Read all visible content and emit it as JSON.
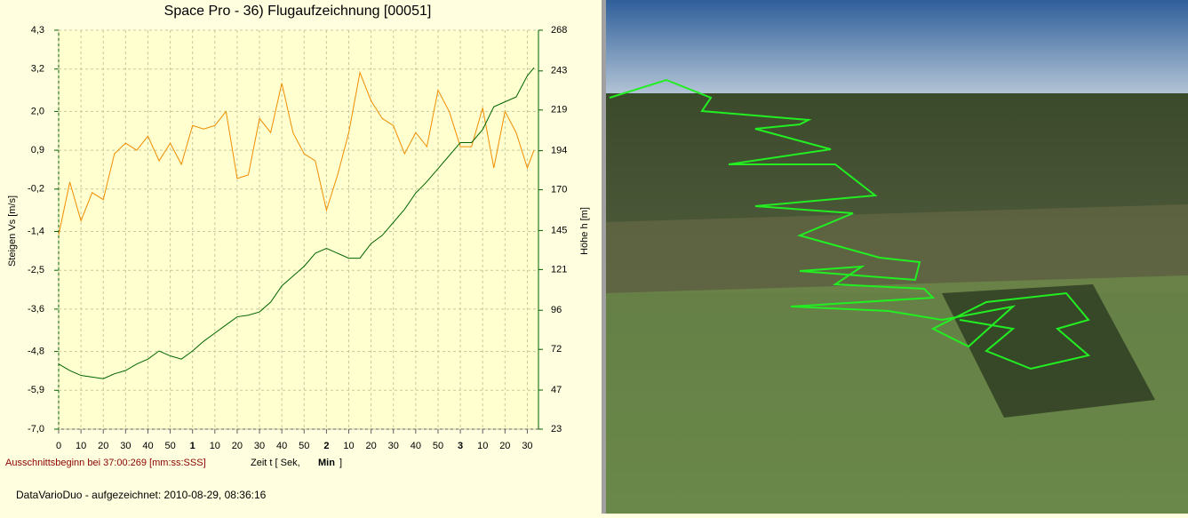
{
  "chart_data": {
    "type": "line",
    "title": "Space Pro - 36) Flugaufzeichnung [00051]",
    "y_label": "Steigen  Vs  [m/s]",
    "y2_label": "Höhe  h  [m]",
    "x_label": "Zeit  t   [ Sek,",
    "x_label_unit": "Min",
    "x_label_close": "]",
    "note": "Ausschnittsbeginn bei 37:00:269 [mm:ss:SSS]",
    "footer": "DataVarioDuo - aufgezeichnet: 2010-08-29, 08:36:16",
    "grid": true,
    "xlim": [
      0,
      215
    ],
    "xticks": [
      0,
      10,
      20,
      30,
      40,
      50,
      {
        "value": 60,
        "label": "1"
      },
      {
        "value": 70,
        "label": "10"
      },
      {
        "value": 80,
        "label": "20"
      },
      {
        "value": 90,
        "label": "30"
      },
      {
        "value": 100,
        "label": "40"
      },
      {
        "value": 110,
        "label": "50"
      },
      {
        "value": 120,
        "label": "2"
      },
      {
        "value": 130,
        "label": "10"
      },
      {
        "value": 140,
        "label": "20"
      },
      {
        "value": 150,
        "label": "30"
      },
      {
        "value": 160,
        "label": "40"
      },
      {
        "value": 170,
        "label": "50"
      },
      {
        "value": 180,
        "label": "3"
      },
      {
        "value": 190,
        "label": "10"
      },
      {
        "value": 200,
        "label": "20"
      },
      {
        "value": 210,
        "label": "30"
      }
    ],
    "ylim": [
      -7.0,
      4.3
    ],
    "yticks": [
      {
        "value": -7.0,
        "label": "-7,0"
      },
      {
        "value": -5.9,
        "label": "-5,9"
      },
      {
        "value": -4.8,
        "label": "-4,8"
      },
      {
        "value": -3.6,
        "label": "-3,6"
      },
      {
        "value": -2.5,
        "label": "-2,5"
      },
      {
        "value": -1.4,
        "label": "-1,4"
      },
      {
        "value": -0.2,
        "label": "-0,2"
      },
      {
        "value": 0.9,
        "label": "0,9"
      },
      {
        "value": 2.0,
        "label": "2,0"
      },
      {
        "value": 3.2,
        "label": "3,2"
      },
      {
        "value": 4.3,
        "label": "4,3"
      }
    ],
    "y2lim": [
      23,
      268
    ],
    "y2ticks": [
      23,
      47,
      72,
      96,
      121,
      145,
      170,
      194,
      219,
      243,
      268
    ],
    "x": [
      0,
      5,
      10,
      15,
      20,
      25,
      30,
      35,
      40,
      45,
      50,
      55,
      60,
      65,
      70,
      75,
      80,
      85,
      90,
      95,
      100,
      105,
      110,
      115,
      120,
      125,
      130,
      135,
      140,
      145,
      150,
      155,
      160,
      165,
      170,
      175,
      180,
      185,
      190,
      195,
      200,
      205,
      210,
      213
    ],
    "series": [
      {
        "color": "#f08c00",
        "values": [
          -1.5,
          0.0,
          -1.1,
          -0.3,
          -0.5,
          0.8,
          1.1,
          0.9,
          1.3,
          0.6,
          1.1,
          0.5,
          1.6,
          1.5,
          1.6,
          2.0,
          0.1,
          0.2,
          1.8,
          1.4,
          2.8,
          1.4,
          0.8,
          0.6,
          -0.8,
          0.2,
          1.4,
          3.1,
          2.3,
          1.8,
          1.6,
          0.8,
          1.4,
          1.0,
          2.6,
          2.0,
          1.0,
          1.0,
          2.1,
          0.4,
          2.0,
          1.4,
          0.4,
          0.9
        ]
      },
      {
        "color": "#006400",
        "axis": "y2",
        "values": [
          63,
          59,
          56,
          55,
          54,
          57,
          59,
          63,
          66,
          71,
          68,
          66,
          71,
          77,
          82,
          87,
          92,
          93,
          95,
          101,
          111,
          117,
          123,
          131,
          134,
          131,
          128,
          128,
          137,
          142,
          150,
          158,
          168,
          175,
          183,
          191,
          199,
          199,
          207,
          221,
          224,
          227,
          240,
          245
        ]
      }
    ]
  }
}
